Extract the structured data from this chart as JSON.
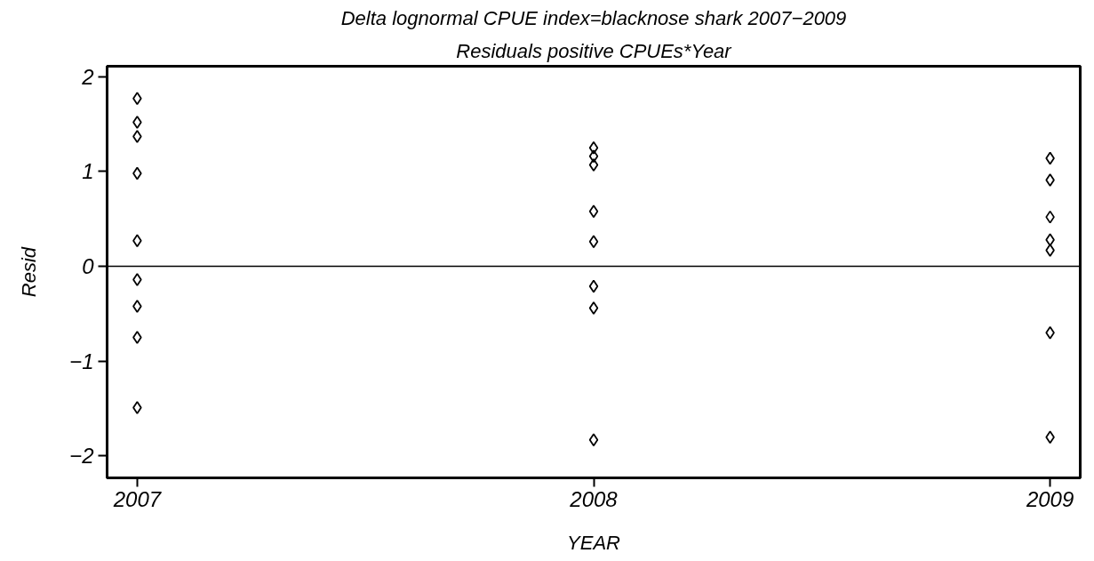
{
  "chart_data": {
    "type": "scatter",
    "title": "Delta lognormal CPUE index=blacknose shark 2007−2009",
    "subtitle": "Residuals positive CPUEs*Year",
    "xlabel": "YEAR",
    "ylabel": "Resid",
    "x": [
      2007,
      2007,
      2007,
      2007,
      2007,
      2007,
      2007,
      2007,
      2007,
      2008,
      2008,
      2008,
      2008,
      2008,
      2008,
      2008,
      2008,
      2009,
      2009,
      2009,
      2009,
      2009,
      2009,
      2009
    ],
    "series": [
      {
        "color": "#000000",
        "values": [
          1.77,
          1.52,
          1.37,
          0.98,
          0.27,
          -0.14,
          -0.42,
          -0.75,
          -1.49,
          1.25,
          1.16,
          1.07,
          0.58,
          0.26,
          -0.21,
          -0.44,
          -1.83,
          1.14,
          0.91,
          0.52,
          0.28,
          0.17,
          -0.7,
          -1.8
        ]
      }
    ],
    "marker": "diamond",
    "xlim": [
      2006.934,
      2009.066
    ],
    "ylim": [
      -2.23,
      2.11
    ],
    "xticks": [
      2007,
      2008,
      2009
    ],
    "yticks": [
      -2,
      -1,
      0,
      1,
      2
    ],
    "ref_lines": [
      {
        "axis": "y",
        "value": 0,
        "color": "#000000"
      }
    ],
    "grid": false
  }
}
